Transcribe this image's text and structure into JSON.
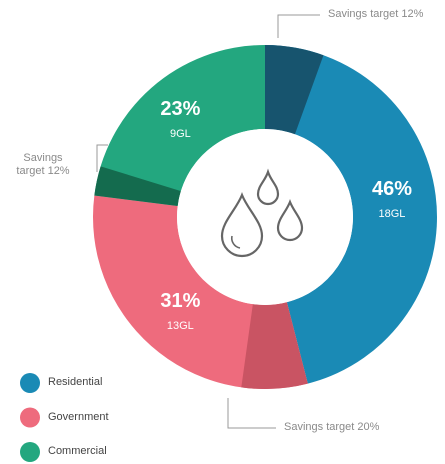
{
  "chart_data": {
    "type": "donut",
    "series": [
      {
        "name": "Residential",
        "value": 46,
        "value_label": "46%",
        "volume": 18,
        "volume_label": "18GL",
        "color": "#1a8ab5",
        "savings_color": "#17546e",
        "savings_target": 12,
        "savings_label": "Savings target 12%"
      },
      {
        "name": "Government",
        "value": 31,
        "value_label": "31%",
        "volume": 13,
        "volume_label": "13GL",
        "color": "#ee6b7d",
        "savings_color": "#c95463",
        "savings_target": 20,
        "savings_label": "Savings target 20%"
      },
      {
        "name": "Commercial",
        "value": 23,
        "value_label": "23%",
        "volume": 9,
        "volume_label": "9GL",
        "color": "#23a77f",
        "savings_color": "#146b4e",
        "savings_target": 12,
        "savings_label": "Savings target 12%"
      }
    ]
  }
}
